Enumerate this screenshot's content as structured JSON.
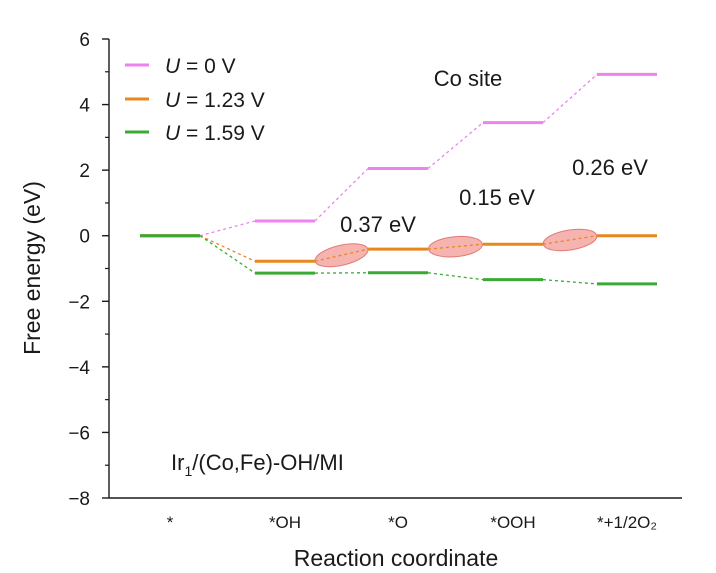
{
  "chart_data": {
    "type": "line",
    "title": "",
    "xlabel": "Reaction coordinate",
    "ylabel": "Free energy (eV)",
    "ylim": [
      -8,
      6
    ],
    "yticks": [
      -8,
      -6,
      -4,
      -2,
      0,
      2,
      4,
      6
    ],
    "categories": [
      "*",
      "*OH",
      "*O",
      "*OOH",
      "*+1/2O₂"
    ],
    "series": [
      {
        "name": "U = 0 V",
        "symbol": "U",
        "value_text": " = 0 V",
        "color": "#ee82ee",
        "values": [
          0,
          0.45,
          2.05,
          3.45,
          4.92
        ]
      },
      {
        "name": "U = 1.23 V",
        "symbol": "U",
        "value_text": " = 1.23 V",
        "color": "#e8871e",
        "values": [
          0,
          -0.78,
          -0.41,
          -0.26,
          0
        ]
      },
      {
        "name": "U = 1.59 V",
        "symbol": "U",
        "value_text": " = 1.59 V",
        "color": "#3aaa35",
        "values": [
          0,
          -1.14,
          -1.13,
          -1.34,
          -1.47
        ]
      }
    ],
    "annotations": {
      "site": "Co site",
      "sample_main": "Ir",
      "sample_sub": "1",
      "sample_rest": "/(Co,Fe)-OH/MI",
      "barriers": [
        {
          "text": "0.37 eV",
          "step": 0
        },
        {
          "text": "0.15 eV",
          "step": 1
        },
        {
          "text": "0.26 eV",
          "step": 2
        }
      ],
      "highlight_color": "#f4a7a3"
    },
    "grid": false,
    "legend_position": "top-left"
  }
}
